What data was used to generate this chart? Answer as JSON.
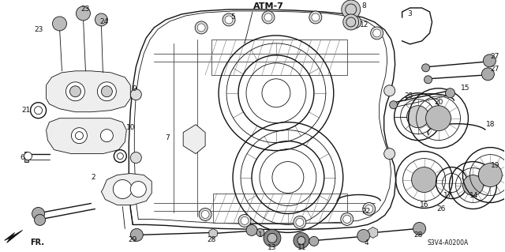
{
  "title": "ATM-7",
  "diagram_code": "S3V4-A0200A",
  "bg_color": "#ffffff",
  "fg_color": "#111111",
  "fig_width": 6.4,
  "fig_height": 3.19,
  "dpi": 100
}
